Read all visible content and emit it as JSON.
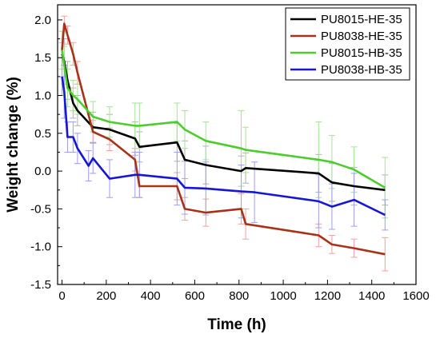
{
  "chart_data": {
    "type": "line",
    "title": "",
    "xlabel": "Time (h)",
    "ylabel": "Weight change (%)",
    "xlim": [
      -20,
      1600
    ],
    "ylim": [
      -1.5,
      2.2
    ],
    "xticks": [
      0,
      200,
      400,
      600,
      800,
      1000,
      1200,
      1400,
      1600
    ],
    "yticks": [
      -1.5,
      -1.0,
      -0.5,
      0.0,
      0.5,
      1.0,
      1.5,
      2.0
    ],
    "xtick_labels": [
      "0",
      "200",
      "400",
      "600",
      "800",
      "1000",
      "1200",
      "1400",
      "1600"
    ],
    "ytick_labels": [
      "-1.5",
      "-1.0",
      "-0.5",
      "0.0",
      "0.5",
      "1.0",
      "1.5",
      "2.0"
    ],
    "grid": false,
    "legend_position": "top-right",
    "series": [
      {
        "name": "PU8015-HE-35",
        "color": "#000000",
        "errbar_color": "#b0b0b0",
        "x": [
          0,
          10,
          25,
          50,
          70,
          140,
          215,
          330,
          350,
          520,
          555,
          650,
          810,
          830,
          1160,
          1220,
          1320,
          1460
        ],
        "y": [
          1.55,
          1.45,
          1.2,
          0.9,
          0.8,
          0.58,
          0.55,
          0.43,
          0.32,
          0.38,
          0.15,
          0.08,
          0.0,
          0.04,
          -0.03,
          -0.15,
          -0.2,
          -0.25
        ],
        "err": [
          0.3,
          0.3,
          0.25,
          0.2,
          0.2,
          0.2,
          0.2,
          0.22,
          0.2,
          0.25,
          0.25,
          0.25,
          0.2,
          0.2,
          0.25,
          0.25,
          0.25,
          0.2
        ]
      },
      {
        "name": "PU8038-HE-35",
        "color": "#a83218",
        "errbar_color": "#f2a0a0",
        "x": [
          0,
          10,
          25,
          50,
          70,
          140,
          215,
          330,
          350,
          520,
          555,
          650,
          810,
          830,
          1160,
          1220,
          1320,
          1460
        ],
        "y": [
          1.6,
          1.95,
          1.8,
          1.55,
          1.3,
          0.52,
          0.42,
          0.15,
          -0.2,
          -0.2,
          -0.5,
          -0.55,
          -0.5,
          -0.7,
          -0.85,
          -0.97,
          -1.02,
          -1.1
        ],
        "err": [
          0.1,
          0.1,
          0.12,
          0.15,
          0.15,
          0.15,
          0.15,
          0.15,
          0.15,
          0.18,
          0.15,
          0.18,
          0.2,
          0.2,
          0.15,
          0.12,
          0.12,
          0.22
        ]
      },
      {
        "name": "PU8015-HB-35",
        "color": "#4ccd2c",
        "errbar_color": "#a6e29a",
        "x": [
          0,
          10,
          25,
          50,
          70,
          140,
          215,
          330,
          350,
          520,
          555,
          650,
          810,
          830,
          1160,
          1220,
          1320,
          1460
        ],
        "y": [
          1.6,
          1.4,
          1.1,
          1.0,
          0.95,
          0.72,
          0.65,
          0.6,
          0.6,
          0.65,
          0.55,
          0.4,
          0.3,
          0.28,
          0.15,
          0.12,
          0.02,
          -0.22
        ],
        "err": [
          0.25,
          0.25,
          0.25,
          0.2,
          0.2,
          0.2,
          0.2,
          0.3,
          0.3,
          0.25,
          0.25,
          0.25,
          0.5,
          0.3,
          0.5,
          0.35,
          0.3,
          0.4
        ]
      },
      {
        "name": "PU8038-HB-35",
        "color": "#1616d6",
        "errbar_color": "#9d9df0",
        "x": [
          0,
          10,
          25,
          50,
          70,
          120,
          140,
          215,
          330,
          350,
          520,
          555,
          650,
          810,
          870,
          1160,
          1220,
          1320,
          1460
        ],
        "y": [
          1.25,
          1.05,
          0.45,
          0.45,
          0.3,
          0.07,
          0.17,
          -0.1,
          -0.05,
          -0.05,
          -0.1,
          -0.22,
          -0.23,
          -0.27,
          -0.28,
          -0.4,
          -0.47,
          -0.38,
          -0.58
        ],
        "err": [
          0.25,
          0.35,
          0.2,
          0.2,
          0.2,
          0.2,
          0.2,
          0.25,
          0.3,
          0.3,
          0.35,
          0.35,
          0.35,
          0.35,
          0.4,
          0.35,
          0.3,
          0.35,
          0.2
        ]
      }
    ]
  }
}
